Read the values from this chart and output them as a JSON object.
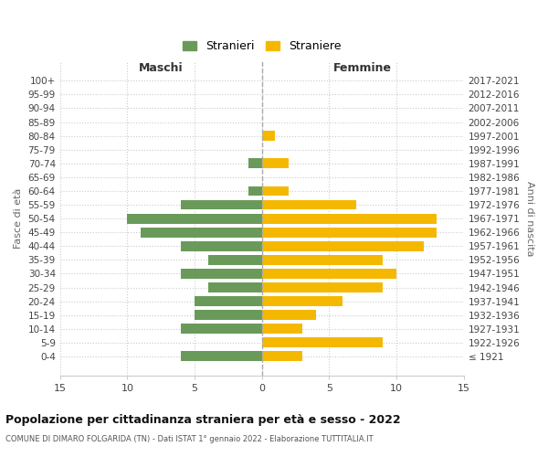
{
  "age_groups": [
    "100+",
    "95-99",
    "90-94",
    "85-89",
    "80-84",
    "75-79",
    "70-74",
    "65-69",
    "60-64",
    "55-59",
    "50-54",
    "45-49",
    "40-44",
    "35-39",
    "30-34",
    "25-29",
    "20-24",
    "15-19",
    "10-14",
    "5-9",
    "0-4"
  ],
  "birth_years": [
    "≤ 1921",
    "1922-1926",
    "1927-1931",
    "1932-1936",
    "1937-1941",
    "1942-1946",
    "1947-1951",
    "1952-1956",
    "1957-1961",
    "1962-1966",
    "1967-1971",
    "1972-1976",
    "1977-1981",
    "1982-1986",
    "1987-1991",
    "1992-1996",
    "1997-2001",
    "2002-2006",
    "2007-2011",
    "2012-2016",
    "2017-2021"
  ],
  "males": [
    0,
    0,
    0,
    0,
    0,
    0,
    1,
    0,
    1,
    6,
    10,
    9,
    6,
    4,
    6,
    4,
    5,
    5,
    6,
    0,
    6
  ],
  "females": [
    0,
    0,
    0,
    0,
    1,
    0,
    2,
    0,
    2,
    7,
    13,
    13,
    12,
    9,
    10,
    9,
    6,
    4,
    3,
    9,
    3
  ],
  "male_color": "#6a9a5a",
  "female_color": "#f5b800",
  "background_color": "#ffffff",
  "grid_color": "#cccccc",
  "title": "Popolazione per cittadinanza straniera per età e sesso - 2022",
  "subtitle": "COMUNE DI DIMARO FOLGARIDA (TN) - Dati ISTAT 1° gennaio 2022 - Elaborazione TUTTITALIA.IT",
  "xlabel_left": "Maschi",
  "xlabel_right": "Femmine",
  "legend_male": "Stranieri",
  "legend_female": "Straniere",
  "ylabel_left": "Fasce di età",
  "ylabel_right": "Anni di nascita",
  "xlim": 15
}
